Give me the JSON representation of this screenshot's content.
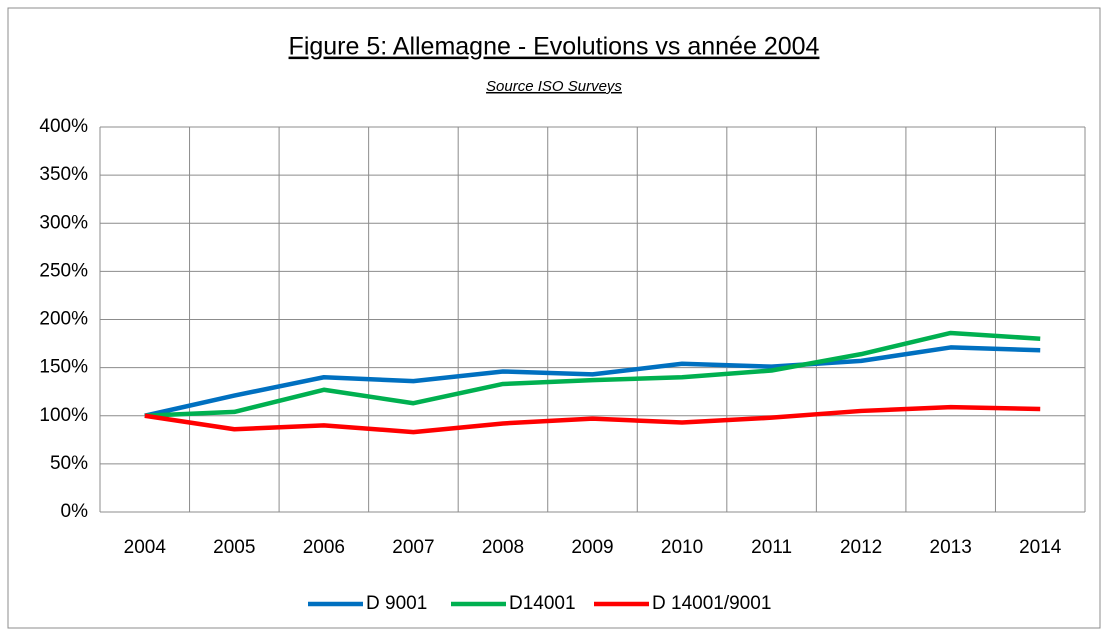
{
  "chart_data": {
    "type": "line",
    "title": "Figure 5: Allemagne - Evolutions vs année 2004",
    "subtitle": "Source ISO Surveys",
    "categories": [
      "2004",
      "2005",
      "2006",
      "2007",
      "2008",
      "2009",
      "2010",
      "2011",
      "2012",
      "2013",
      "2014"
    ],
    "series": [
      {
        "name": "D 9001",
        "color": "#0070c0",
        "values": [
          100,
          121,
          140,
          136,
          146,
          143,
          154,
          151,
          157,
          171,
          168
        ]
      },
      {
        "name": "D14001",
        "color": "#00b050",
        "values": [
          100,
          104,
          127,
          113,
          133,
          137,
          140,
          147,
          164,
          186,
          180
        ]
      },
      {
        "name": "D 14001/9001",
        "color": "#ff0000",
        "values": [
          100,
          86,
          90,
          83,
          92,
          97,
          93,
          98,
          105,
          109,
          107
        ]
      }
    ],
    "ylim": [
      0,
      400
    ],
    "yticks": [
      {
        "value": 0,
        "label": "0%"
      },
      {
        "value": 50,
        "label": "50%"
      },
      {
        "value": 100,
        "label": "100%"
      },
      {
        "value": 150,
        "label": "150%"
      },
      {
        "value": 200,
        "label": "200%"
      },
      {
        "value": 250,
        "label": "250%"
      },
      {
        "value": 300,
        "label": "300%"
      },
      {
        "value": 350,
        "label": "350%"
      },
      {
        "value": 400,
        "label": "400%"
      }
    ],
    "grid": true,
    "legend": "bottom"
  }
}
